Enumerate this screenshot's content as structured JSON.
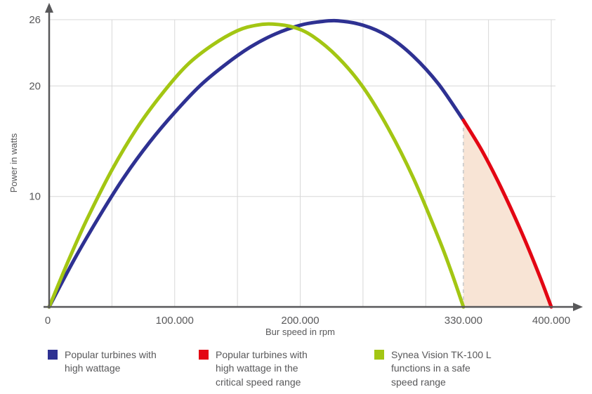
{
  "chart_data": {
    "type": "line",
    "title": "",
    "xlabel": "Bur speed in rpm",
    "ylabel": "Power in watts",
    "x_axis_max": 400000,
    "y_axis_max": 26,
    "x_grid_step": 50000,
    "y_grid_values": [
      10,
      20,
      26
    ],
    "x_ticks": [
      {
        "value": 0,
        "label": "0"
      },
      {
        "value": 100000,
        "label": "100.000"
      },
      {
        "value": 200000,
        "label": "200.000"
      },
      {
        "value": 330000,
        "label": "330.000"
      },
      {
        "value": 400000,
        "label": "400.000"
      }
    ],
    "y_ticks": [
      {
        "value": 10,
        "label": "10"
      },
      {
        "value": 20,
        "label": "20"
      },
      {
        "value": 26,
        "label": "26"
      }
    ],
    "dashed_line_x": 330000,
    "critical_region": {
      "from": 330000,
      "to": 400000,
      "fill": "#f8e4d5"
    },
    "series": [
      {
        "id": "blue",
        "name": "Popular turbines with high wattage",
        "color": "#2e3192",
        "points": [
          [
            0,
            0
          ],
          [
            20000,
            4.3
          ],
          [
            40000,
            8.2
          ],
          [
            60000,
            11.8
          ],
          [
            80000,
            14.9
          ],
          [
            100000,
            17.6
          ],
          [
            120000,
            20.0
          ],
          [
            140000,
            21.9
          ],
          [
            160000,
            23.5
          ],
          [
            180000,
            24.7
          ],
          [
            200000,
            25.5
          ],
          [
            215000,
            25.8
          ],
          [
            230000,
            25.9
          ],
          [
            250000,
            25.5
          ],
          [
            270000,
            24.5
          ],
          [
            290000,
            22.7
          ],
          [
            310000,
            20.2
          ],
          [
            330000,
            16.9
          ]
        ]
      },
      {
        "id": "red",
        "name": "Popular turbines with high wattage in the critical speed range",
        "color": "#e30613",
        "points": [
          [
            330000,
            16.9
          ],
          [
            345000,
            14.1
          ],
          [
            360000,
            10.8
          ],
          [
            375000,
            7.1
          ],
          [
            390000,
            3.0
          ],
          [
            400000,
            0
          ]
        ]
      },
      {
        "id": "green",
        "name": "Synea Vision TK-100 L functions in a safe speed range",
        "color": "#a3c613",
        "points": [
          [
            0,
            0
          ],
          [
            15000,
            4.1
          ],
          [
            30000,
            7.9
          ],
          [
            50000,
            12.4
          ],
          [
            70000,
            16.2
          ],
          [
            90000,
            19.3
          ],
          [
            110000,
            21.9
          ],
          [
            130000,
            23.7
          ],
          [
            150000,
            25.0
          ],
          [
            165000,
            25.5
          ],
          [
            178000,
            25.6
          ],
          [
            195000,
            25.3
          ],
          [
            210000,
            24.5
          ],
          [
            230000,
            22.6
          ],
          [
            250000,
            19.9
          ],
          [
            270000,
            16.2
          ],
          [
            290000,
            11.7
          ],
          [
            310000,
            6.3
          ],
          [
            320000,
            3.3
          ],
          [
            330000,
            0
          ]
        ]
      }
    ]
  },
  "colors": {
    "axis": "#58585a",
    "grid": "#d8d8d8",
    "text": "#58585a",
    "dashed_line": "#cfcfcf",
    "critical_fill": "#f8e4d5"
  },
  "legend": {
    "items": [
      {
        "color": "#2e3192",
        "label": "Popular turbines with\nhigh wattage"
      },
      {
        "color": "#e30613",
        "label": "Popular turbines with\nhigh wattage in the\ncritical speed range"
      },
      {
        "color": "#a3c613",
        "label": "Synea Vision TK-100 L\nfunctions in a safe\nspeed range"
      }
    ]
  }
}
